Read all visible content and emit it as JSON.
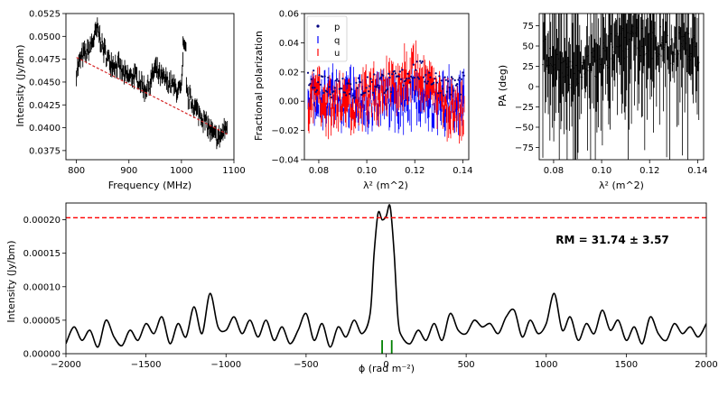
{
  "chart_data": [
    {
      "id": "spectrum",
      "type": "line",
      "xlabel": "Frequency (MHz)",
      "ylabel": "Intensity (Jy/bm)",
      "xlim": [
        780,
        1100
      ],
      "ylim": [
        0.0365,
        0.0525
      ],
      "xticks": [
        800,
        900,
        1000,
        1100
      ],
      "xtick_labels": [
        "800",
        "900",
        "1000",
        "1100"
      ],
      "yticks": [
        0.0375,
        0.04,
        0.0425,
        0.045,
        0.0475,
        0.05,
        0.0525
      ],
      "ytick_labels": [
        "0.0375",
        "0.0400",
        "0.0425",
        "0.0450",
        "0.0475",
        "0.0500",
        "0.0525"
      ],
      "series": [
        {
          "name": "data",
          "color": "#000000",
          "style": "errorbar",
          "x": [
            800,
            810,
            820,
            830,
            840,
            850,
            860,
            870,
            880,
            890,
            900,
            910,
            920,
            930,
            940,
            950,
            960,
            970,
            980,
            990,
            1000,
            1005,
            1010,
            1020,
            1030,
            1040,
            1050,
            1060,
            1070,
            1080,
            1087
          ],
          "y": [
            0.0462,
            0.0478,
            0.0482,
            0.0493,
            0.0508,
            0.0488,
            0.0475,
            0.047,
            0.0468,
            0.0458,
            0.0455,
            0.0457,
            0.0452,
            0.0442,
            0.0448,
            0.0465,
            0.0455,
            0.0452,
            0.0448,
            0.0442,
            0.044,
            0.0492,
            0.0437,
            0.0428,
            0.0418,
            0.0412,
            0.0402,
            0.0392,
            0.0388,
            0.0395,
            0.0403
          ]
        },
        {
          "name": "model",
          "color": "#d62728",
          "style": "dashed",
          "x": [
            800,
            1087
          ],
          "y": [
            0.0477,
            0.0393
          ]
        }
      ]
    },
    {
      "id": "fractional",
      "type": "scatter",
      "xlabel": "λ² (m^2)",
      "ylabel": "Fractional polarization",
      "xlim": [
        0.074,
        0.1425
      ],
      "ylim": [
        -0.04,
        0.06
      ],
      "xticks": [
        0.08,
        0.1,
        0.12,
        0.14
      ],
      "xtick_labels": [
        "0.08",
        "0.10",
        "0.12",
        "0.14"
      ],
      "yticks": [
        -0.04,
        -0.02,
        0.0,
        0.02,
        0.04,
        0.06
      ],
      "ytick_labels": [
        "−0.04",
        "−0.02",
        "0.00",
        "0.02",
        "0.04",
        "0.06"
      ],
      "legend": {
        "position": "top-left",
        "entries": [
          "p",
          "q",
          "u"
        ]
      },
      "series": [
        {
          "name": "p",
          "color": "#000080",
          "marker": "dot",
          "x": [
            0.076,
            0.08,
            0.085,
            0.09,
            0.095,
            0.1,
            0.105,
            0.11,
            0.115,
            0.12,
            0.125,
            0.13,
            0.135,
            0.14
          ],
          "y": [
            0.012,
            0.015,
            0.01,
            0.013,
            0.008,
            0.011,
            0.014,
            0.012,
            0.016,
            0.022,
            0.018,
            0.013,
            0.01,
            0.012
          ]
        },
        {
          "name": "q",
          "color": "#0000ff",
          "marker": "errorbar",
          "x": [
            0.076,
            0.08,
            0.085,
            0.09,
            0.095,
            0.1,
            0.105,
            0.11,
            0.115,
            0.12,
            0.125,
            0.13,
            0.135,
            0.14
          ],
          "y": [
            0.002,
            -0.005,
            0.004,
            -0.003,
            0.006,
            -0.002,
            0.003,
            0.0,
            -0.004,
            0.004,
            0.002,
            -0.003,
            0.001,
            -0.002
          ]
        },
        {
          "name": "u",
          "color": "#ff0000",
          "marker": "errorbar",
          "x": [
            0.076,
            0.08,
            0.085,
            0.09,
            0.095,
            0.1,
            0.105,
            0.11,
            0.115,
            0.12,
            0.125,
            0.13,
            0.135,
            0.14
          ],
          "y": [
            0.0,
            0.005,
            -0.004,
            0.003,
            -0.003,
            0.004,
            0.006,
            0.012,
            0.015,
            0.02,
            0.008,
            0.002,
            -0.004,
            -0.01
          ]
        }
      ]
    },
    {
      "id": "pa",
      "type": "scatter",
      "xlabel": "λ² (m^2)",
      "ylabel": "PA (deg)",
      "xlim": [
        0.074,
        0.1425
      ],
      "ylim": [
        -90,
        90
      ],
      "xticks": [
        0.08,
        0.1,
        0.12,
        0.14
      ],
      "xtick_labels": [
        "0.08",
        "0.10",
        "0.12",
        "0.14"
      ],
      "yticks": [
        -75,
        -50,
        -25,
        0,
        25,
        50,
        75
      ],
      "ytick_labels": [
        "−75",
        "−50",
        "−25",
        "0",
        "25",
        "50",
        "75"
      ],
      "series": [
        {
          "name": "PA",
          "color": "#000000",
          "marker": "errorbar",
          "x": [
            0.076,
            0.08,
            0.085,
            0.09,
            0.095,
            0.1,
            0.105,
            0.11,
            0.115,
            0.12,
            0.125,
            0.13,
            0.135,
            0.14
          ],
          "y": [
            40,
            30,
            20,
            10,
            20,
            35,
            50,
            55,
            60,
            50,
            55,
            45,
            50,
            40
          ]
        }
      ]
    },
    {
      "id": "faraday",
      "type": "line",
      "xlabel": "ϕ (rad m⁻²)",
      "ylabel": "Intensity (Jy/bm)",
      "xlim": [
        -2000,
        2000
      ],
      "ylim": [
        0,
        0.000225
      ],
      "xticks": [
        -2000,
        -1500,
        -1000,
        -500,
        0,
        500,
        1000,
        1500,
        2000
      ],
      "xtick_labels": [
        "−2000",
        "−1500",
        "−1000",
        "−500",
        "0",
        "500",
        "1000",
        "1500",
        "2000"
      ],
      "yticks": [
        0,
        5e-05,
        0.0001,
        0.00015,
        0.0002
      ],
      "ytick_labels": [
        "0.00000",
        "0.00005",
        "0.00010",
        "0.00015",
        "0.00020"
      ],
      "threshold": {
        "value": 0.000203,
        "color": "#ff0000",
        "style": "dashed"
      },
      "markers": {
        "x": [
          -25,
          35
        ],
        "color": "#008000"
      },
      "series": [
        {
          "name": "FDF",
          "color": "#000000",
          "x": [
            -2000,
            -1950,
            -1900,
            -1850,
            -1800,
            -1750,
            -1700,
            -1650,
            -1600,
            -1550,
            -1500,
            -1450,
            -1400,
            -1350,
            -1300,
            -1250,
            -1200,
            -1150,
            -1100,
            -1050,
            -1000,
            -950,
            -900,
            -850,
            -800,
            -750,
            -700,
            -650,
            -600,
            -550,
            -500,
            -450,
            -400,
            -350,
            -300,
            -250,
            -200,
            -150,
            -100,
            -75,
            -50,
            -25,
            0,
            25,
            50,
            75,
            100,
            150,
            200,
            250,
            300,
            350,
            400,
            450,
            500,
            550,
            600,
            650,
            700,
            750,
            800,
            850,
            900,
            950,
            1000,
            1050,
            1100,
            1150,
            1200,
            1250,
            1300,
            1350,
            1400,
            1450,
            1500,
            1550,
            1600,
            1650,
            1700,
            1750,
            1800,
            1850,
            1900,
            1950,
            2000
          ],
          "y": [
            1.5e-05,
            4e-05,
            2e-05,
            3.5e-05,
            1e-05,
            5e-05,
            2.5e-05,
            1.2e-05,
            3.5e-05,
            2e-05,
            4.5e-05,
            3e-05,
            5.5e-05,
            1.5e-05,
            4.5e-05,
            2.5e-05,
            7e-05,
            3e-05,
            9e-05,
            4e-05,
            3.5e-05,
            5.5e-05,
            3e-05,
            5e-05,
            2.5e-05,
            5e-05,
            2e-05,
            4e-05,
            1.5e-05,
            3.5e-05,
            6e-05,
            2e-05,
            4.5e-05,
            1e-05,
            4e-05,
            2.5e-05,
            5e-05,
            3e-05,
            6e-05,
            0.00015,
            0.00021,
            0.0002,
            0.000205,
            0.00022,
            0.00015,
            5e-05,
            2.5e-05,
            1.5e-05,
            3.5e-05,
            2e-05,
            4.5e-05,
            2e-05,
            6e-05,
            3.5e-05,
            3e-05,
            5e-05,
            4e-05,
            4.5e-05,
            3e-05,
            5.5e-05,
            6.5e-05,
            2.5e-05,
            5e-05,
            3e-05,
            4.5e-05,
            9e-05,
            3.5e-05,
            5.5e-05,
            2e-05,
            4.5e-05,
            3e-05,
            6.5e-05,
            3.5e-05,
            5e-05,
            2e-05,
            4e-05,
            1.5e-05,
            5.5e-05,
            3e-05,
            2e-05,
            4.5e-05,
            3e-05,
            4e-05,
            2.5e-05,
            4.5e-05
          ]
        }
      ],
      "annotation": "RM = 31.74 ± 3.57"
    }
  ]
}
